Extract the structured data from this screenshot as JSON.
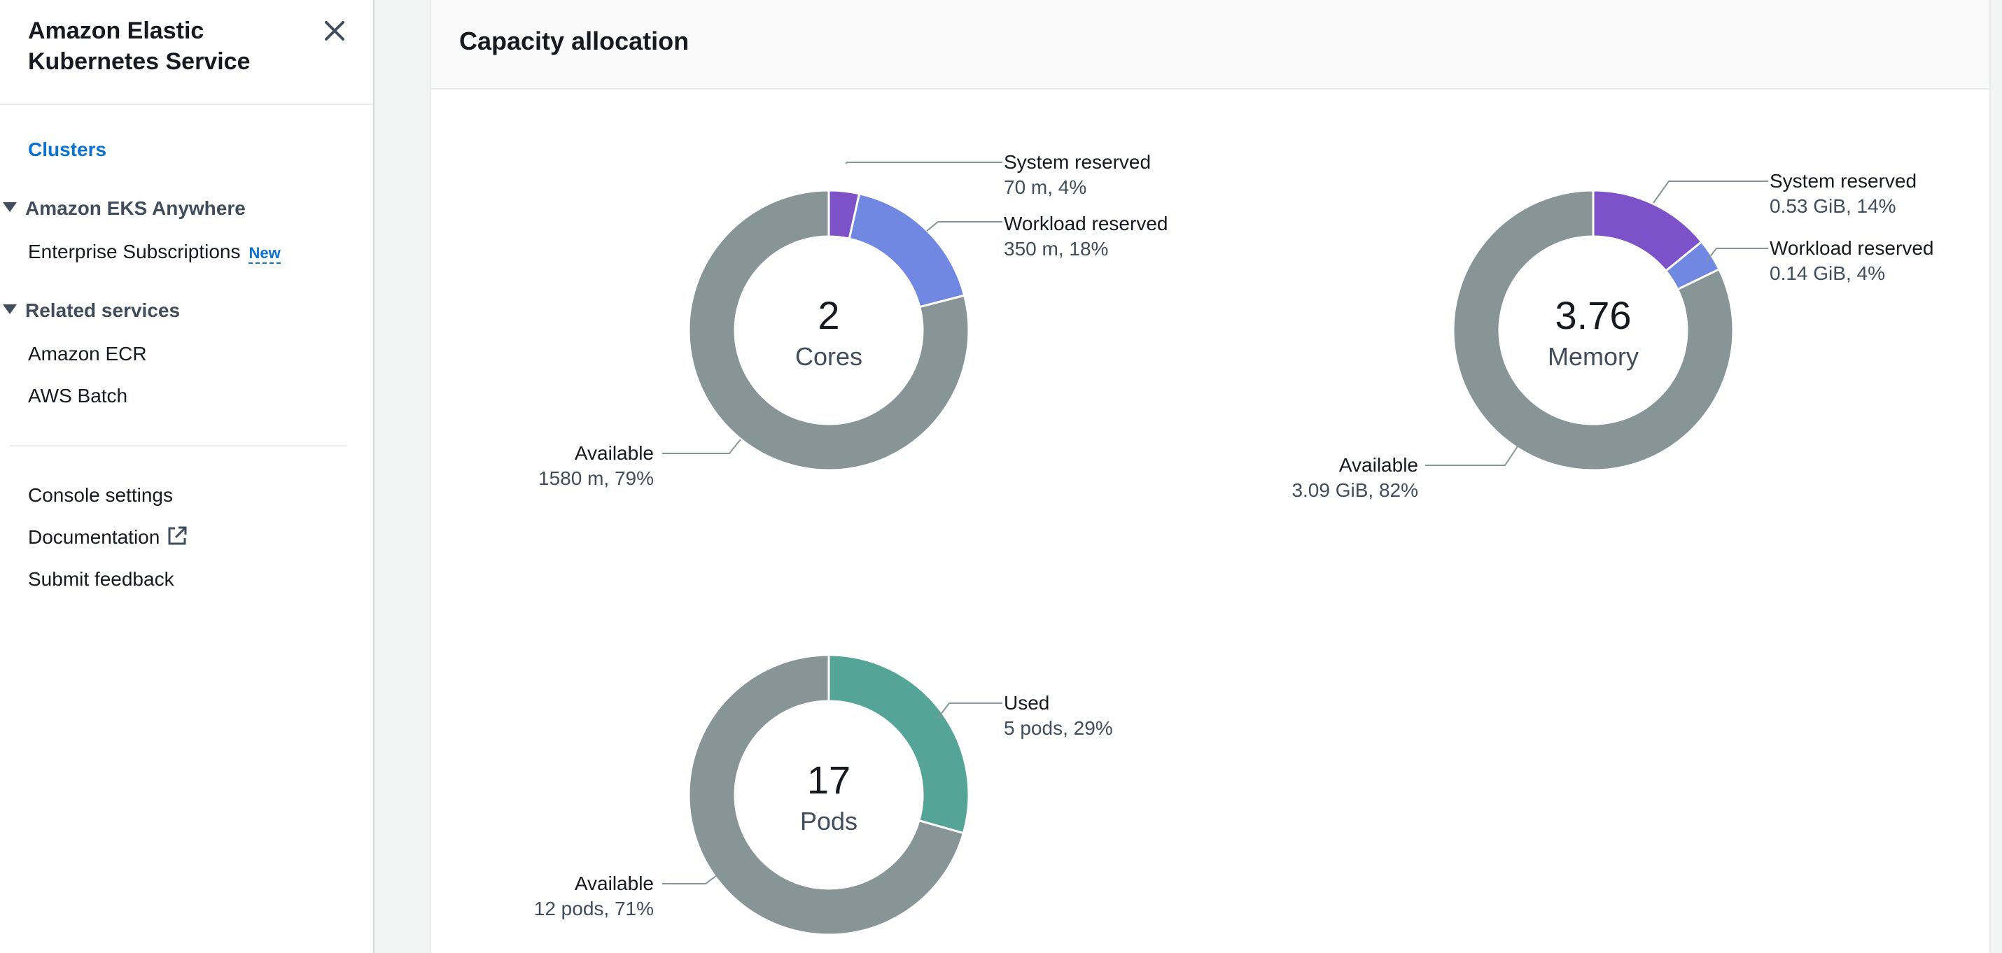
{
  "sidebar": {
    "title": "Amazon Elastic Kubernetes Service",
    "close_icon": "close-icon",
    "clusters": "Clusters",
    "eks_anywhere": {
      "label": "Amazon EKS Anywhere",
      "items": [
        {
          "label": "Enterprise Subscriptions",
          "badge": "New"
        }
      ]
    },
    "related": {
      "label": "Related services",
      "items": [
        {
          "label": "Amazon ECR"
        },
        {
          "label": "AWS Batch"
        }
      ]
    },
    "footer": {
      "console_settings": "Console settings",
      "documentation": "Documentation",
      "submit_feedback": "Submit feedback"
    }
  },
  "panel": {
    "title": "Capacity allocation"
  },
  "colors": {
    "system_reserved": "#7d52c9",
    "workload_reserved": "#7088e1",
    "available": "#879596",
    "used": "#54a497",
    "link": "#0972d3"
  },
  "chart_data": [
    {
      "type": "pie",
      "variant": "donut",
      "center_value": "2",
      "center_label": "Cores",
      "slices": [
        {
          "label": "System reserved",
          "detail": "70 m, 4%",
          "value": 70,
          "percent": 4,
          "color": "#7d52c9"
        },
        {
          "label": "Workload reserved",
          "detail": "350 m, 18%",
          "value": 350,
          "percent": 18,
          "color": "#7088e1"
        },
        {
          "label": "Available",
          "detail": "1580 m, 79%",
          "value": 1580,
          "percent": 79,
          "color": "#879596"
        }
      ]
    },
    {
      "type": "pie",
      "variant": "donut",
      "center_value": "3.76",
      "center_label": "Memory",
      "slices": [
        {
          "label": "System reserved",
          "detail": "0.53 GiB, 14%",
          "value": 0.53,
          "percent": 14,
          "color": "#7d52c9"
        },
        {
          "label": "Workload reserved",
          "detail": "0.14 GiB, 4%",
          "value": 0.14,
          "percent": 4,
          "color": "#7088e1"
        },
        {
          "label": "Available",
          "detail": "3.09 GiB, 82%",
          "value": 3.09,
          "percent": 82,
          "color": "#879596"
        }
      ]
    },
    {
      "type": "pie",
      "variant": "donut",
      "center_value": "17",
      "center_label": "Pods",
      "slices": [
        {
          "label": "Used",
          "detail": "5 pods, 29%",
          "value": 5,
          "percent": 29,
          "color": "#54a497"
        },
        {
          "label": "Available",
          "detail": "12 pods, 71%",
          "value": 12,
          "percent": 71,
          "color": "#879596"
        }
      ]
    }
  ]
}
